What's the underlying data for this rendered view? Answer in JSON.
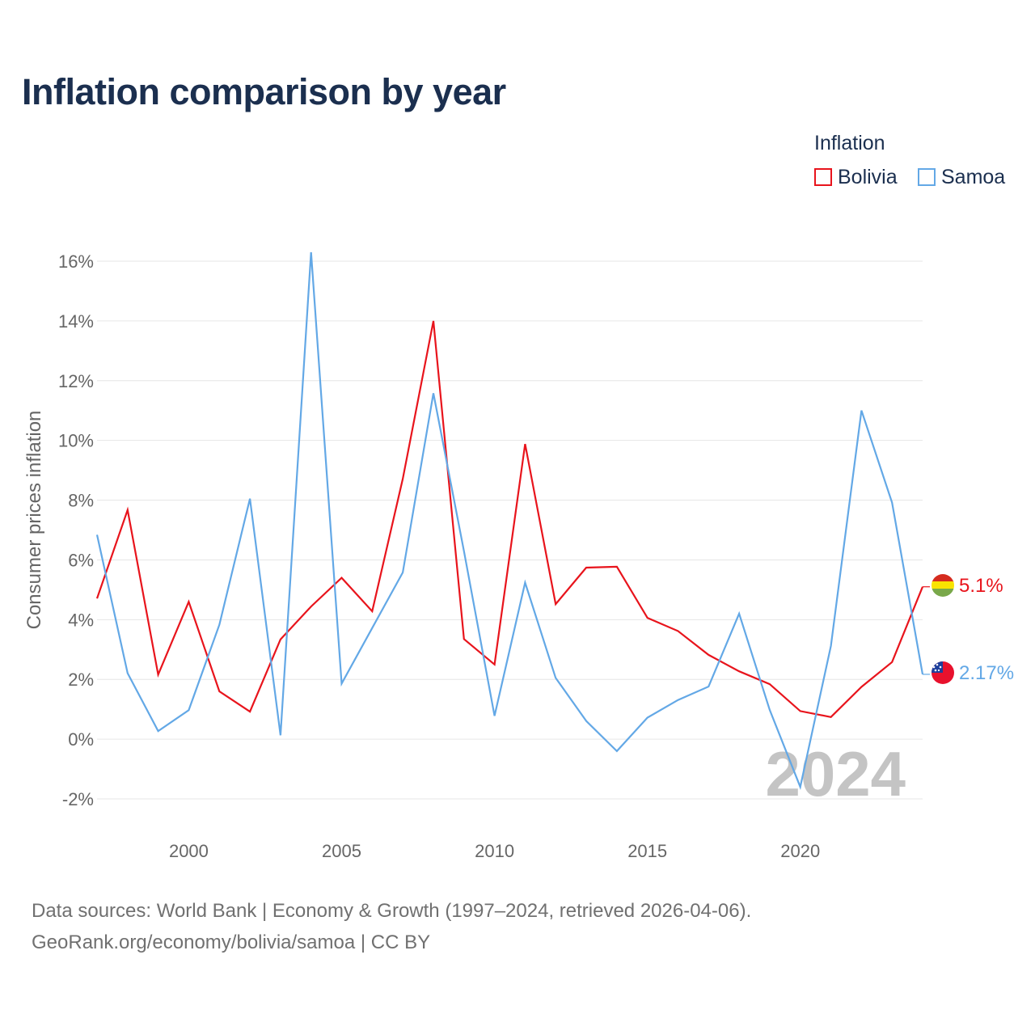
{
  "header": {
    "title": "Inflation comparison by year"
  },
  "legend": {
    "title": "Inflation",
    "items": [
      {
        "label": "Bolivia",
        "color": "#e8141c"
      },
      {
        "label": "Samoa",
        "color": "#63a8e6"
      }
    ]
  },
  "footer": {
    "source_line1": "Data sources: World Bank | Economy & Growth (1997–2024, retrieved 2026-04-06).",
    "source_line2": "GeoRank.org/economy/bolivia/samoa | CC BY"
  },
  "chart_data": {
    "type": "line",
    "title": "Inflation comparison by year",
    "xlabel": "",
    "ylabel": "Consumer prices inflation",
    "x": [
      1997,
      1998,
      1999,
      2000,
      2001,
      2002,
      2003,
      2004,
      2005,
      2006,
      2007,
      2008,
      2009,
      2010,
      2011,
      2012,
      2013,
      2014,
      2015,
      2016,
      2017,
      2018,
      2019,
      2020,
      2021,
      2022,
      2023,
      2024
    ],
    "xlim": [
      1997,
      2024
    ],
    "ylim": [
      -2,
      16
    ],
    "x_ticks": [
      2000,
      2005,
      2010,
      2015,
      2020
    ],
    "y_ticks": [
      -2,
      0,
      2,
      4,
      6,
      8,
      10,
      12,
      14,
      16
    ],
    "y_tick_labels": [
      "-2%",
      "0%",
      "2%",
      "4%",
      "6%",
      "8%",
      "10%",
      "12%",
      "14%",
      "16%"
    ],
    "grid": true,
    "legend_position": "top-right",
    "watermark": "2024",
    "series": [
      {
        "name": "Bolivia",
        "color": "#e8141c",
        "end_label": "5.1%",
        "flag": "bolivia",
        "values": [
          4.71,
          7.67,
          2.16,
          4.6,
          1.6,
          0.92,
          3.34,
          4.44,
          5.4,
          4.28,
          8.71,
          14.0,
          3.35,
          2.5,
          9.88,
          4.52,
          5.74,
          5.77,
          4.06,
          3.62,
          2.82,
          2.27,
          1.84,
          0.94,
          0.74,
          1.75,
          2.58,
          5.1
        ]
      },
      {
        "name": "Samoa",
        "color": "#63a8e6",
        "end_label": "2.17%",
        "flag": "samoa",
        "values": [
          6.84,
          2.21,
          0.27,
          0.97,
          3.83,
          8.05,
          0.13,
          16.3,
          1.86,
          3.72,
          5.58,
          11.58,
          6.29,
          0.78,
          5.24,
          2.05,
          0.61,
          -0.4,
          0.72,
          1.31,
          1.76,
          4.2,
          0.98,
          -1.6,
          3.12,
          11.0,
          7.92,
          2.17
        ]
      }
    ]
  }
}
